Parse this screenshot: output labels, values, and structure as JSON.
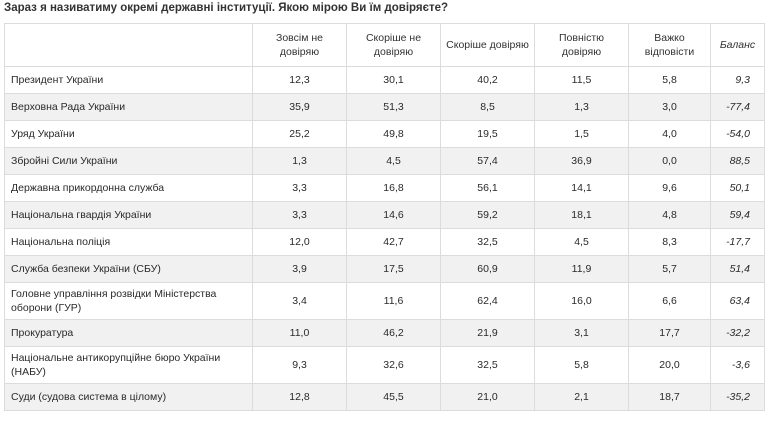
{
  "question": "Зараз я називатиму окремі державні інституції. Якою мірою Ви їм довіряєте?",
  "columns": [
    "Зовсім не довіряю",
    "Скоріше не довіряю",
    "Скоріше довіряю",
    "Повністю довіряю",
    "Важко відповісти",
    "Баланс"
  ],
  "rows": [
    {
      "name": "Президент України",
      "values": [
        "12,3",
        "30,1",
        "40,2",
        "11,5",
        "5,8",
        "9,3"
      ]
    },
    {
      "name": "Верховна Рада України",
      "values": [
        "35,9",
        "51,3",
        "8,5",
        "1,3",
        "3,0",
        "-77,4"
      ]
    },
    {
      "name": "Уряд України",
      "values": [
        "25,2",
        "49,8",
        "19,5",
        "1,5",
        "4,0",
        "-54,0"
      ]
    },
    {
      "name": "Збройні Сили України",
      "values": [
        "1,3",
        "4,5",
        "57,4",
        "36,9",
        "0,0",
        "88,5"
      ]
    },
    {
      "name": "Державна прикордонна служба",
      "values": [
        "3,3",
        "16,8",
        "56,1",
        "14,1",
        "9,6",
        "50,1"
      ]
    },
    {
      "name": "Національна гвардія України",
      "values": [
        "3,3",
        "14,6",
        "59,2",
        "18,1",
        "4,8",
        "59,4"
      ]
    },
    {
      "name": "Національна поліція",
      "values": [
        "12,0",
        "42,7",
        "32,5",
        "4,5",
        "8,3",
        "-17,7"
      ]
    },
    {
      "name": "Служба безпеки України (СБУ)",
      "values": [
        "3,9",
        "17,5",
        "60,9",
        "11,9",
        "5,7",
        "51,4"
      ]
    },
    {
      "name": "Головне управління розвідки Міністерства оборони (ГУР)",
      "values": [
        "3,4",
        "11,6",
        "62,4",
        "16,0",
        "6,6",
        "63,4"
      ]
    },
    {
      "name": "Прокуратура",
      "values": [
        "11,0",
        "46,2",
        "21,9",
        "3,1",
        "17,7",
        "-32,2"
      ]
    },
    {
      "name": "Національне антикорупційне бюро України (НАБУ)",
      "values": [
        "9,3",
        "32,6",
        "32,5",
        "5,8",
        "20,0",
        "-3,6"
      ]
    },
    {
      "name": "Суди (судова система в цілому)",
      "values": [
        "12,8",
        "45,5",
        "21,0",
        "2,1",
        "18,7",
        "-35,2"
      ]
    }
  ]
}
